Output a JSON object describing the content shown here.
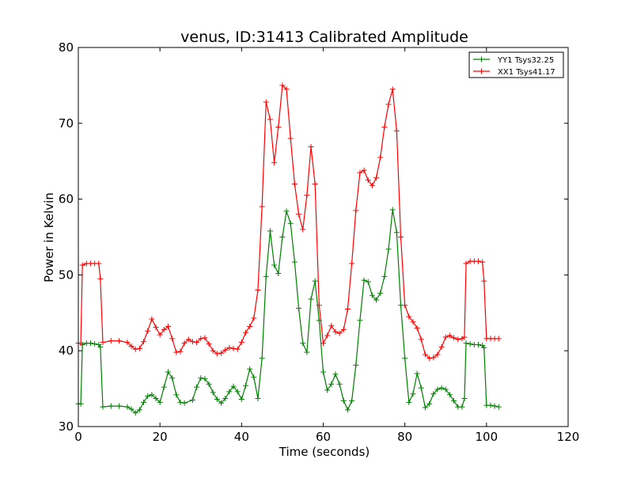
{
  "chart_data": {
    "type": "line",
    "title": "venus, ID:31413 Calibrated Amplitude",
    "xlabel": "Time (seconds)",
    "ylabel": "Power in Kelvin",
    "xlim": [
      0,
      120
    ],
    "ylim": [
      30,
      80
    ],
    "xticks": [
      0,
      20,
      40,
      60,
      80,
      100,
      120
    ],
    "yticks": [
      30,
      40,
      50,
      60,
      70,
      80
    ],
    "grid": false,
    "legend_position": "top-right",
    "series": [
      {
        "name": "YY1 Tsys32.25",
        "color": "#008000",
        "marker": "+",
        "x": [
          0,
          0.6,
          1,
          2,
          3,
          4,
          5,
          5.4,
          6,
          8,
          10,
          12,
          13,
          14,
          15,
          16,
          17,
          18,
          19,
          20,
          21,
          22,
          23,
          24,
          25,
          26,
          28,
          29,
          30,
          31,
          32,
          33,
          34,
          35,
          36,
          37,
          38,
          39,
          40,
          41,
          42,
          43,
          44,
          45,
          46,
          47,
          48,
          49,
          50,
          51,
          52,
          53,
          54,
          55,
          56,
          57,
          58,
          59,
          60,
          61,
          62,
          63,
          64,
          65,
          66,
          67,
          68,
          69,
          70,
          71,
          72,
          73,
          74,
          75,
          76,
          77,
          78,
          79,
          80,
          81,
          82,
          83,
          84,
          85,
          86,
          87,
          88,
          89,
          90,
          91,
          92,
          93,
          94,
          94.6,
          95,
          96,
          97,
          98,
          99,
          99.4,
          100,
          101,
          102,
          103
        ],
        "y": [
          33,
          33,
          40.8,
          41,
          41,
          40.9,
          40.8,
          40.5,
          32.6,
          32.7,
          32.7,
          32.6,
          32.3,
          31.8,
          32.2,
          33.2,
          34,
          34.2,
          33.7,
          33.2,
          35.2,
          37.2,
          36.4,
          34.2,
          33.2,
          33.1,
          33.5,
          35.2,
          36.4,
          36.3,
          35.6,
          34.5,
          33.6,
          33.1,
          33.7,
          34.6,
          35.3,
          34.6,
          33.6,
          35.4,
          37.6,
          36.5,
          33.7,
          39,
          49.8,
          55.8,
          51.3,
          50.2,
          55,
          58.4,
          56.8,
          51.7,
          45.6,
          41,
          39.8,
          46.8,
          49.2,
          44,
          37.2,
          34.8,
          35.6,
          36.9,
          35.6,
          33.4,
          32.2,
          33.4,
          38.1,
          44,
          49.3,
          49.1,
          47.3,
          46.7,
          47.6,
          49.8,
          53.4,
          58.6,
          55.6,
          46,
          39,
          33.2,
          34.3,
          37,
          35.1,
          32.5,
          33,
          34.3,
          34.9,
          35.1,
          34.9,
          34.2,
          33.4,
          32.6,
          32.6,
          33.7,
          41,
          40.9,
          40.8,
          40.8,
          40.7,
          40.4,
          32.8,
          32.8,
          32.7,
          32.6
        ]
      },
      {
        "name": "XX1 Tsys41.17",
        "color": "#ff0000",
        "marker": "+",
        "x": [
          0,
          0.6,
          1,
          2,
          3,
          4,
          5,
          5.4,
          6,
          8,
          10,
          12,
          13,
          14,
          15,
          16,
          17,
          18,
          19,
          20,
          21,
          22,
          23,
          24,
          25,
          26,
          27,
          28,
          29,
          30,
          31,
          32,
          33,
          34,
          35,
          36,
          37,
          38,
          39,
          40,
          41,
          42,
          43,
          44,
          45,
          46,
          47,
          48,
          49,
          50,
          51,
          52,
          53,
          54,
          55,
          56,
          57,
          58,
          59,
          60,
          61,
          62,
          63,
          64,
          65,
          66,
          67,
          68,
          69,
          70,
          71,
          72,
          73,
          74,
          75,
          76,
          77,
          78,
          79,
          80,
          81,
          82,
          83,
          84,
          85,
          86,
          87,
          88,
          89,
          90,
          91,
          92,
          93,
          94,
          94.6,
          95,
          96,
          97,
          98,
          99,
          99.4,
          100,
          101,
          102,
          103
        ],
        "y": [
          41,
          41,
          51.3,
          51.5,
          51.5,
          51.5,
          51.5,
          49.5,
          41.1,
          41.3,
          41.3,
          41.1,
          40.6,
          40.2,
          40.3,
          41.2,
          42.6,
          44.2,
          43.1,
          42.1,
          42.8,
          43.2,
          41.6,
          39.8,
          39.9,
          41,
          41.5,
          41.2,
          41.1,
          41.6,
          41.7,
          40.9,
          40,
          39.6,
          39.7,
          40.1,
          40.4,
          40.3,
          40.2,
          41.1,
          42.4,
          43.2,
          44.3,
          48,
          59,
          72.8,
          70.5,
          64.8,
          69.5,
          75,
          74.5,
          68,
          62,
          58,
          56,
          60.5,
          66.9,
          62,
          46,
          41,
          42,
          43.3,
          42.5,
          42.3,
          42.8,
          45.5,
          51.5,
          58.5,
          63.5,
          63.8,
          62.5,
          61.8,
          62.8,
          65.5,
          69.5,
          72.5,
          74.5,
          69,
          55,
          46,
          44.5,
          43.8,
          43,
          41.5,
          39.5,
          39,
          39.1,
          39.5,
          40.5,
          41.8,
          42,
          41.7,
          41.5,
          41.6,
          41.8,
          51.5,
          51.8,
          51.8,
          51.8,
          51.7,
          49.2,
          41.6,
          41.6,
          41.6,
          41.6
        ]
      }
    ]
  }
}
